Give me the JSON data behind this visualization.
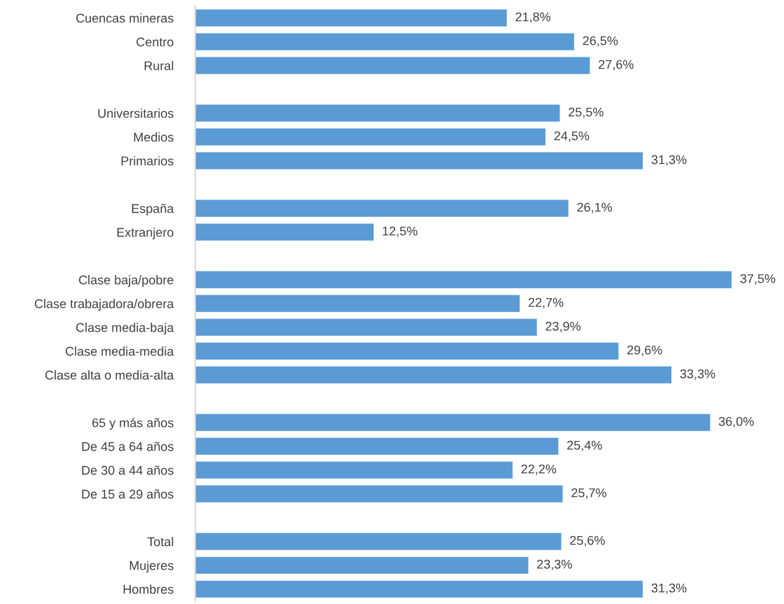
{
  "chart_data": {
    "type": "bar",
    "orientation": "horizontal",
    "tick_labels": "y",
    "grid": false,
    "legend": false,
    "categories": [
      "Cuencas mineras",
      "Centro",
      "Rural",
      null,
      "Universitarios",
      "Medios",
      "Primarios",
      null,
      "España",
      "Extranjero",
      null,
      "Clase baja/pobre",
      "Clase trabajadora/obrera",
      "Clase media-baja",
      "Clase media-media",
      "Clase alta o media-alta",
      null,
      "65 y más años",
      "De 45 a 64 años",
      "De 30 a 44 años",
      "De 15 a 29 años",
      null,
      "Total",
      "Mujeres",
      "Hombres"
    ],
    "series": [
      {
        "color": "#5b9bd5",
        "values": [
          21.8,
          26.5,
          27.6,
          null,
          25.5,
          24.5,
          31.3,
          null,
          26.1,
          12.5,
          null,
          37.5,
          22.7,
          23.9,
          29.6,
          33.3,
          null,
          36.0,
          25.4,
          22.2,
          25.7,
          null,
          25.6,
          23.3,
          31.3
        ],
        "value_labels": [
          "21,8%",
          "26,5%",
          "27,6%",
          null,
          "25,5%",
          "24,5%",
          "31,3%",
          null,
          "26,1%",
          "12,5%",
          null,
          "37,5%",
          "22,7%",
          "23,9%",
          "29,6%",
          "33,3%",
          null,
          "36,0%",
          "25,4%",
          "22,2%",
          "25,7%",
          null,
          "25,6%",
          "23,3%",
          "31,3%"
        ]
      }
    ]
  }
}
